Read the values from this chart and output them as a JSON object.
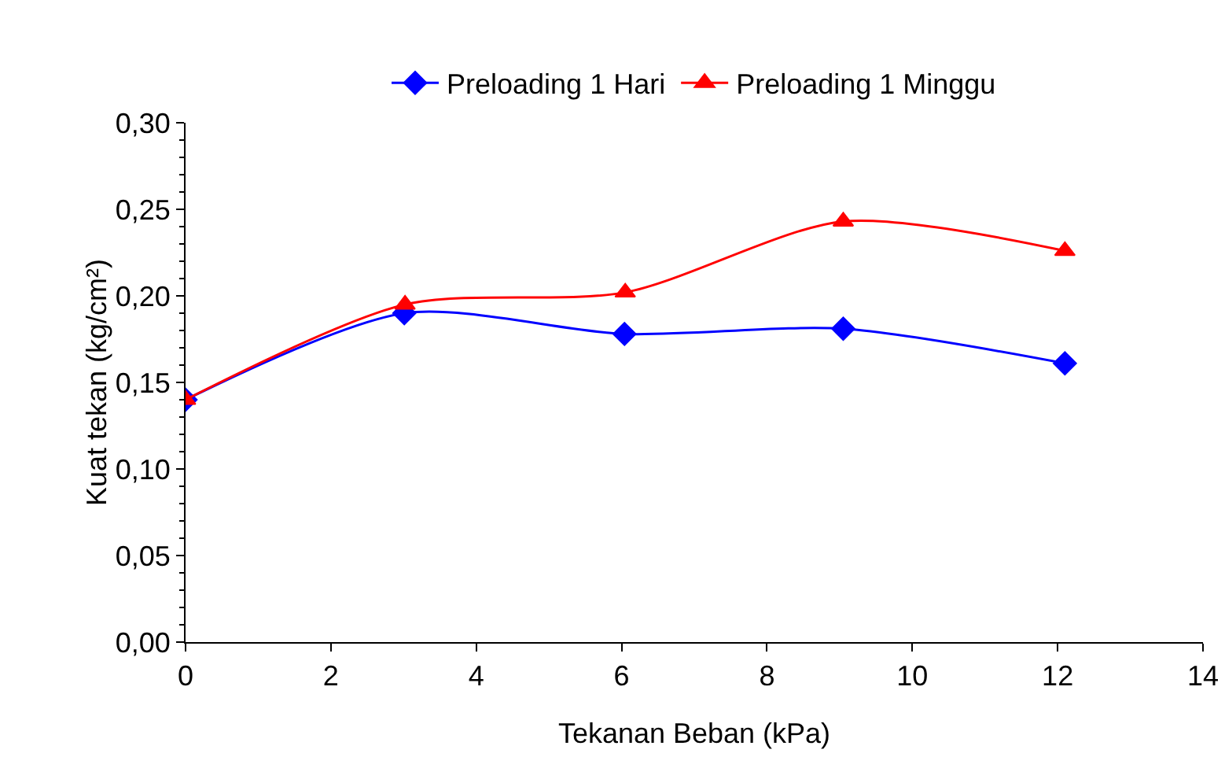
{
  "chart_data": {
    "type": "line",
    "xlabel": "Tekanan Beban (kPa)",
    "ylabel": "Kuat tekan (kg/cm²)",
    "xlim": [
      0,
      14
    ],
    "xticks": [
      0,
      2,
      4,
      6,
      8,
      10,
      12,
      14
    ],
    "ylim": [
      0,
      0.3
    ],
    "yticks": [
      {
        "value": 0,
        "label": "0,00"
      },
      {
        "value": 0.05,
        "label": "0,05"
      },
      {
        "value": 0.1,
        "label": "0,10"
      },
      {
        "value": 0.15,
        "label": "0,15"
      },
      {
        "value": 0.2,
        "label": "0,20"
      },
      {
        "value": 0.25,
        "label": "0,25"
      },
      {
        "value": 0.3,
        "label": "0,30"
      }
    ],
    "grid": false,
    "legend": "top",
    "series": [
      {
        "name": "Preloading 1 Hari",
        "color": "#0000ff",
        "marker": "diamond",
        "x": [
          0,
          3.01,
          6.04,
          9.05,
          12.1
        ],
        "values": [
          0.14,
          0.19,
          0.178,
          0.181,
          0.161
        ]
      },
      {
        "name": "Preloading 1 Minggu",
        "color": "#ff0000",
        "marker": "triangle",
        "x": [
          0,
          3.02,
          6.05,
          9.05,
          12.1
        ],
        "values": [
          0.14,
          0.195,
          0.202,
          0.243,
          0.226
        ]
      }
    ]
  }
}
